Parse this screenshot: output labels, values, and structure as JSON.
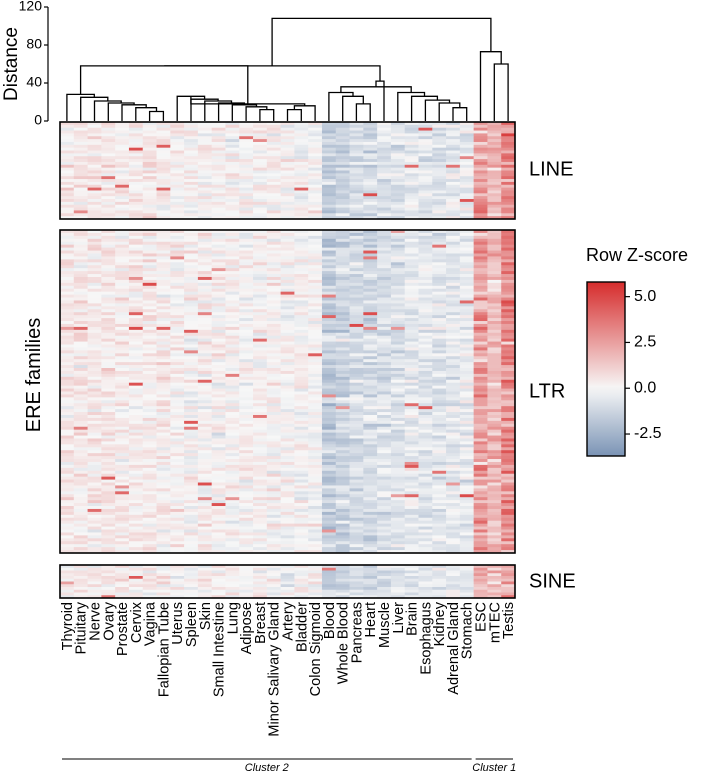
{
  "chart_data": {
    "type": "heatmap",
    "title": "",
    "ylabel": "ERE families",
    "dendrogram": {
      "ylabel": "Distance",
      "ylim": [
        0,
        120
      ],
      "yticks": [
        0,
        40,
        80,
        120
      ]
    },
    "columns": [
      "Thyroid",
      "Pituitary",
      "Nerve",
      "Ovary",
      "Prostate",
      "Cervix",
      "Vagina",
      "Fallopian Tube",
      "Uterus",
      "Spleen",
      "Skin",
      "Small Intestine",
      "Lung",
      "Adipose",
      "Breast",
      "Minor Salivary Gland",
      "Artery",
      "Bladder",
      "Colon Sigmoid",
      "Blood",
      "Whole Blood",
      "Pancreas",
      "Heart",
      "Muscle",
      "Liver",
      "Brain",
      "Esophagus",
      "Kidney",
      "Adrenal Gland",
      "Stomach",
      "ESC",
      "mTEC",
      "Testis"
    ],
    "column_profile": [
      0.35,
      0.4,
      0.35,
      0.4,
      0.3,
      0.25,
      0.3,
      0.25,
      0.2,
      0.1,
      0.15,
      0.15,
      0.12,
      0.1,
      0.1,
      0.1,
      0.05,
      0.05,
      0.0,
      -1.5,
      -1.2,
      -0.9,
      -1.0,
      -0.8,
      -0.7,
      -0.5,
      -0.6,
      -0.6,
      -0.5,
      -0.4,
      3.0,
      2.2,
      3.6
    ],
    "row_groups": [
      {
        "name": "LINE",
        "rows": 34
      },
      {
        "name": "LTR",
        "rows": 110
      },
      {
        "name": "SINE",
        "rows": 12
      }
    ],
    "colorbar": {
      "label": "Row Z-score",
      "ticks": [
        5.0,
        2.5,
        0.0,
        -2.5
      ],
      "tick_labels": [
        "5.0",
        "2.5",
        "0.0",
        "-2.5"
      ],
      "range": [
        -3.7,
        5.8
      ],
      "colors": {
        "low": "#7a93b5",
        "mid": "#f7f7f7",
        "high": "#d62c2c"
      }
    },
    "clusters": [
      {
        "name": "Cluster 2",
        "from": "Thyroid",
        "to": "Stomach"
      },
      {
        "name": "Cluster 1",
        "from": "ESC",
        "to": "Testis"
      }
    ],
    "dendrogram_merges": [
      {
        "cols": [
          6,
          7
        ],
        "h": 10
      },
      {
        "cols": [
          5,
          "m0"
        ],
        "h": 14
      },
      {
        "cols": [
          4,
          "m1"
        ],
        "h": 17
      },
      {
        "cols": [
          3,
          "m2"
        ],
        "h": 19
      },
      {
        "cols": [
          2,
          "m3"
        ],
        "h": 21
      },
      {
        "cols": [
          1,
          "m4"
        ],
        "h": 25
      },
      {
        "cols": [
          0,
          "m5"
        ],
        "h": 28
      },
      {
        "cols": [
          14,
          15
        ],
        "h": 12
      },
      {
        "cols": [
          13,
          "m7"
        ],
        "h": 15
      },
      {
        "cols": [
          12,
          "m8"
        ],
        "h": 17
      },
      {
        "cols": [
          11,
          "m9"
        ],
        "h": 19
      },
      {
        "cols": [
          10,
          "m10"
        ],
        "h": 21
      },
      {
        "cols": [
          9,
          "m11"
        ],
        "h": 23
      },
      {
        "cols": [
          8,
          "m12"
        ],
        "h": 26
      },
      {
        "cols": [
          16,
          17
        ],
        "h": 12
      },
      {
        "cols": [
          18,
          "m14"
        ],
        "h": 16
      },
      {
        "cols": [
          "m13",
          "m15"
        ],
        "h": 18
      },
      {
        "cols": [
          "m6",
          "m16"
        ],
        "h": 58
      },
      {
        "cols": [
          21,
          22
        ],
        "h": 18
      },
      {
        "cols": [
          20,
          "m18"
        ],
        "h": 26
      },
      {
        "cols": [
          19,
          "m19"
        ],
        "h": 30
      },
      {
        "cols": [
          28,
          29
        ],
        "h": 14
      },
      {
        "cols": [
          27,
          "m21"
        ],
        "h": 19
      },
      {
        "cols": [
          26,
          "m22"
        ],
        "h": 22
      },
      {
        "cols": [
          25,
          "m23"
        ],
        "h": 26
      },
      {
        "cols": [
          24,
          "m24"
        ],
        "h": 30
      },
      {
        "cols": [
          "m20",
          "m25"
        ],
        "h": 36
      },
      {
        "cols": [
          23,
          "m26"
        ],
        "h": 42
      },
      {
        "cols": [
          "m17",
          "m27"
        ],
        "h": 58
      },
      {
        "cols": [
          31,
          32
        ],
        "h": 60
      },
      {
        "cols": [
          30,
          "m29"
        ],
        "h": 73
      },
      {
        "cols": [
          "m28",
          "m30"
        ],
        "h": 108
      }
    ]
  }
}
